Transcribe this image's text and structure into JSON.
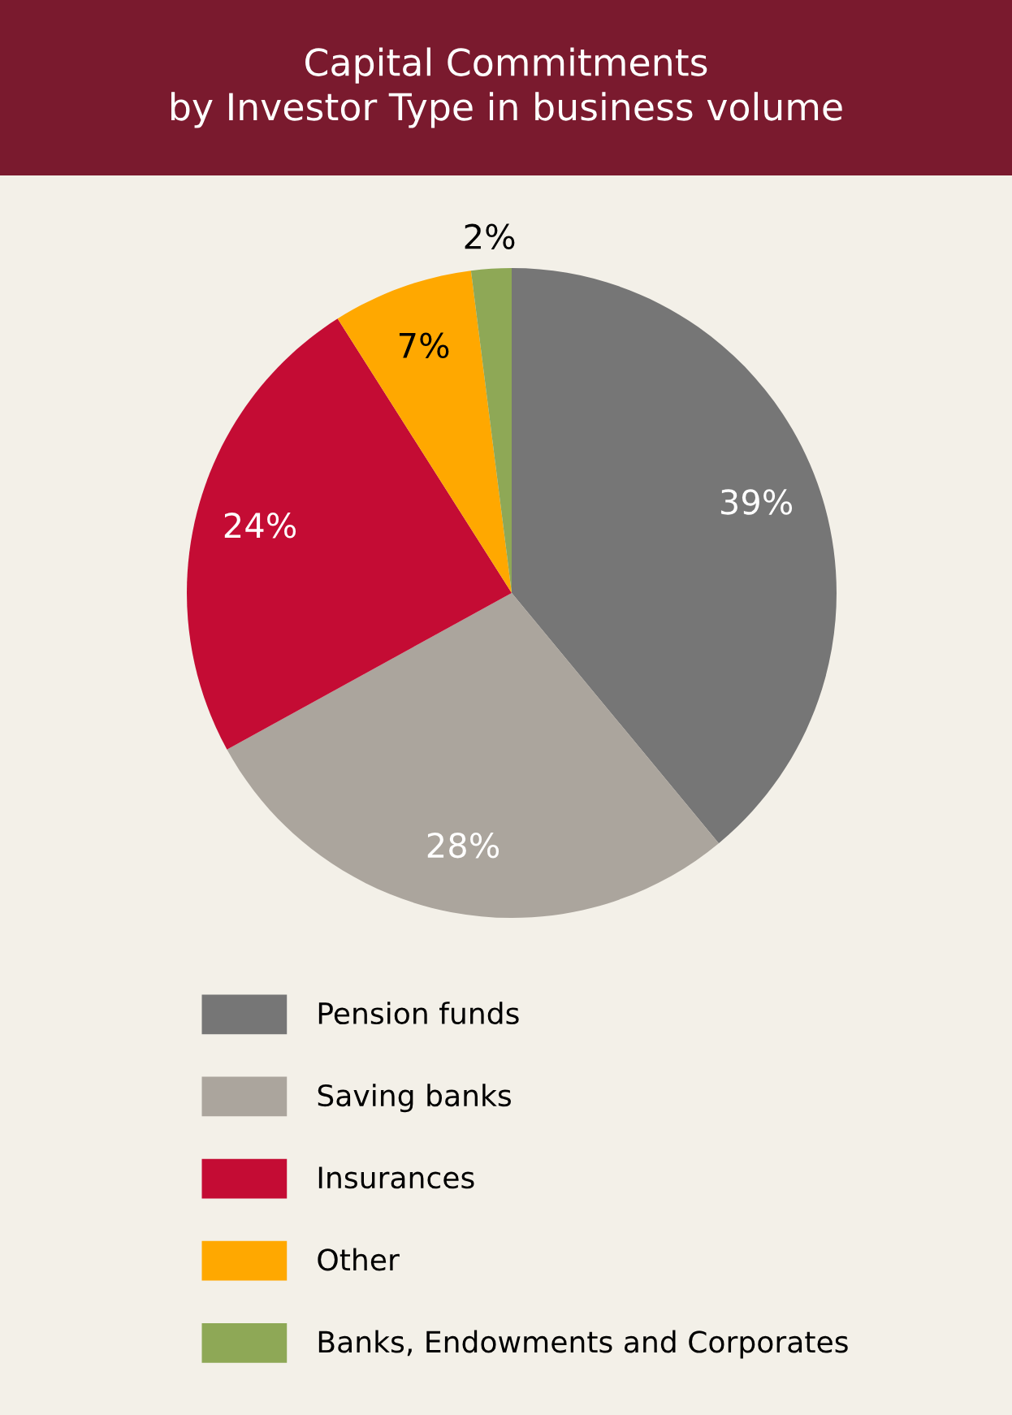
{
  "chart_data": {
    "type": "pie",
    "title": "Capital Commitments\nby Investor Type in business volume",
    "categories": [
      "Pension funds",
      "Saving banks",
      "Insurances",
      "Other",
      "Banks, Endowments and Corporates"
    ],
    "values": [
      39,
      28,
      24,
      7,
      2
    ],
    "colors": [
      "#767676",
      "#aba59d",
      "#c40c34",
      "#ffa800",
      "#8ea856"
    ],
    "value_labels": [
      "39%",
      "28%",
      "24%",
      "7%",
      "2%"
    ],
    "legend": "bottom"
  }
}
